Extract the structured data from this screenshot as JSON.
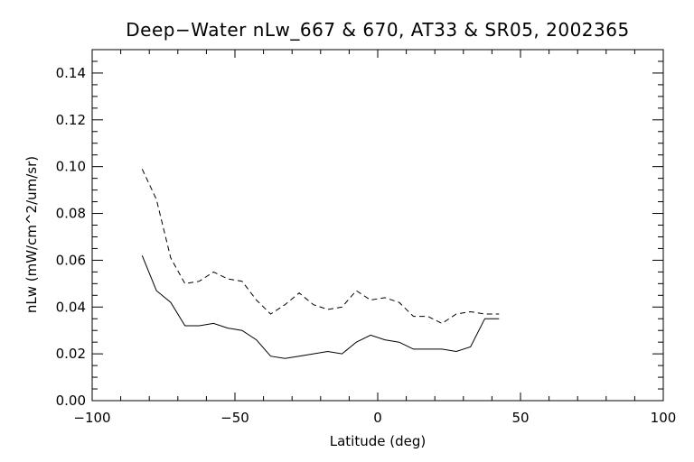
{
  "chart_data": {
    "type": "line",
    "title": "Deep−Water nLw_667 & 670, AT33 & SR05, 2002365",
    "xlabel": "Latitude (deg)",
    "ylabel": "nLw (mW/cm^2/um/sr)",
    "xlim": [
      -100,
      100
    ],
    "ylim": [
      0.0,
      0.15
    ],
    "xticks": [
      -100,
      -50,
      0,
      50,
      100
    ],
    "xtick_labels": [
      "−100",
      "−50",
      "0",
      "50",
      "100"
    ],
    "yticks": [
      0.0,
      0.02,
      0.04,
      0.06,
      0.08,
      0.1,
      0.12,
      0.14
    ],
    "ytick_labels": [
      "0.00",
      "0.02",
      "0.04",
      "0.06",
      "0.08",
      "0.10",
      "0.12",
      "0.14"
    ],
    "grid": false,
    "series": [
      {
        "style": "solid",
        "x": [
          -82.5,
          -77.5,
          -72.5,
          -67.5,
          -62.5,
          -57.5,
          -52.5,
          -47.5,
          -42.5,
          -37.5,
          -32.5,
          -27.5,
          -22.5,
          -17.5,
          -12.5,
          -7.5,
          -2.5,
          2.5,
          7.5,
          12.5,
          17.5,
          22.5,
          27.5,
          32.5,
          37.5,
          42.5
        ],
        "values": [
          0.062,
          0.047,
          0.042,
          0.032,
          0.032,
          0.033,
          0.031,
          0.03,
          0.026,
          0.019,
          0.018,
          0.019,
          0.02,
          0.021,
          0.02,
          0.025,
          0.028,
          0.026,
          0.025,
          0.022,
          0.022,
          0.022,
          0.021,
          0.023,
          0.035,
          0.035
        ]
      },
      {
        "style": "dashed",
        "x": [
          -82.5,
          -77.5,
          -72.5,
          -67.5,
          -62.5,
          -57.5,
          -52.5,
          -47.5,
          -42.5,
          -37.5,
          -32.5,
          -27.5,
          -22.5,
          -17.5,
          -12.5,
          -7.5,
          -2.5,
          2.5,
          7.5,
          12.5,
          17.5,
          22.5,
          27.5,
          32.5,
          37.5,
          42.5
        ],
        "values": [
          0.099,
          0.086,
          0.061,
          0.05,
          0.051,
          0.055,
          0.052,
          0.051,
          0.043,
          0.037,
          0.041,
          0.046,
          0.041,
          0.039,
          0.04,
          0.047,
          0.043,
          0.044,
          0.042,
          0.036,
          0.036,
          0.033,
          0.037,
          0.038,
          0.037,
          0.037
        ]
      }
    ]
  }
}
